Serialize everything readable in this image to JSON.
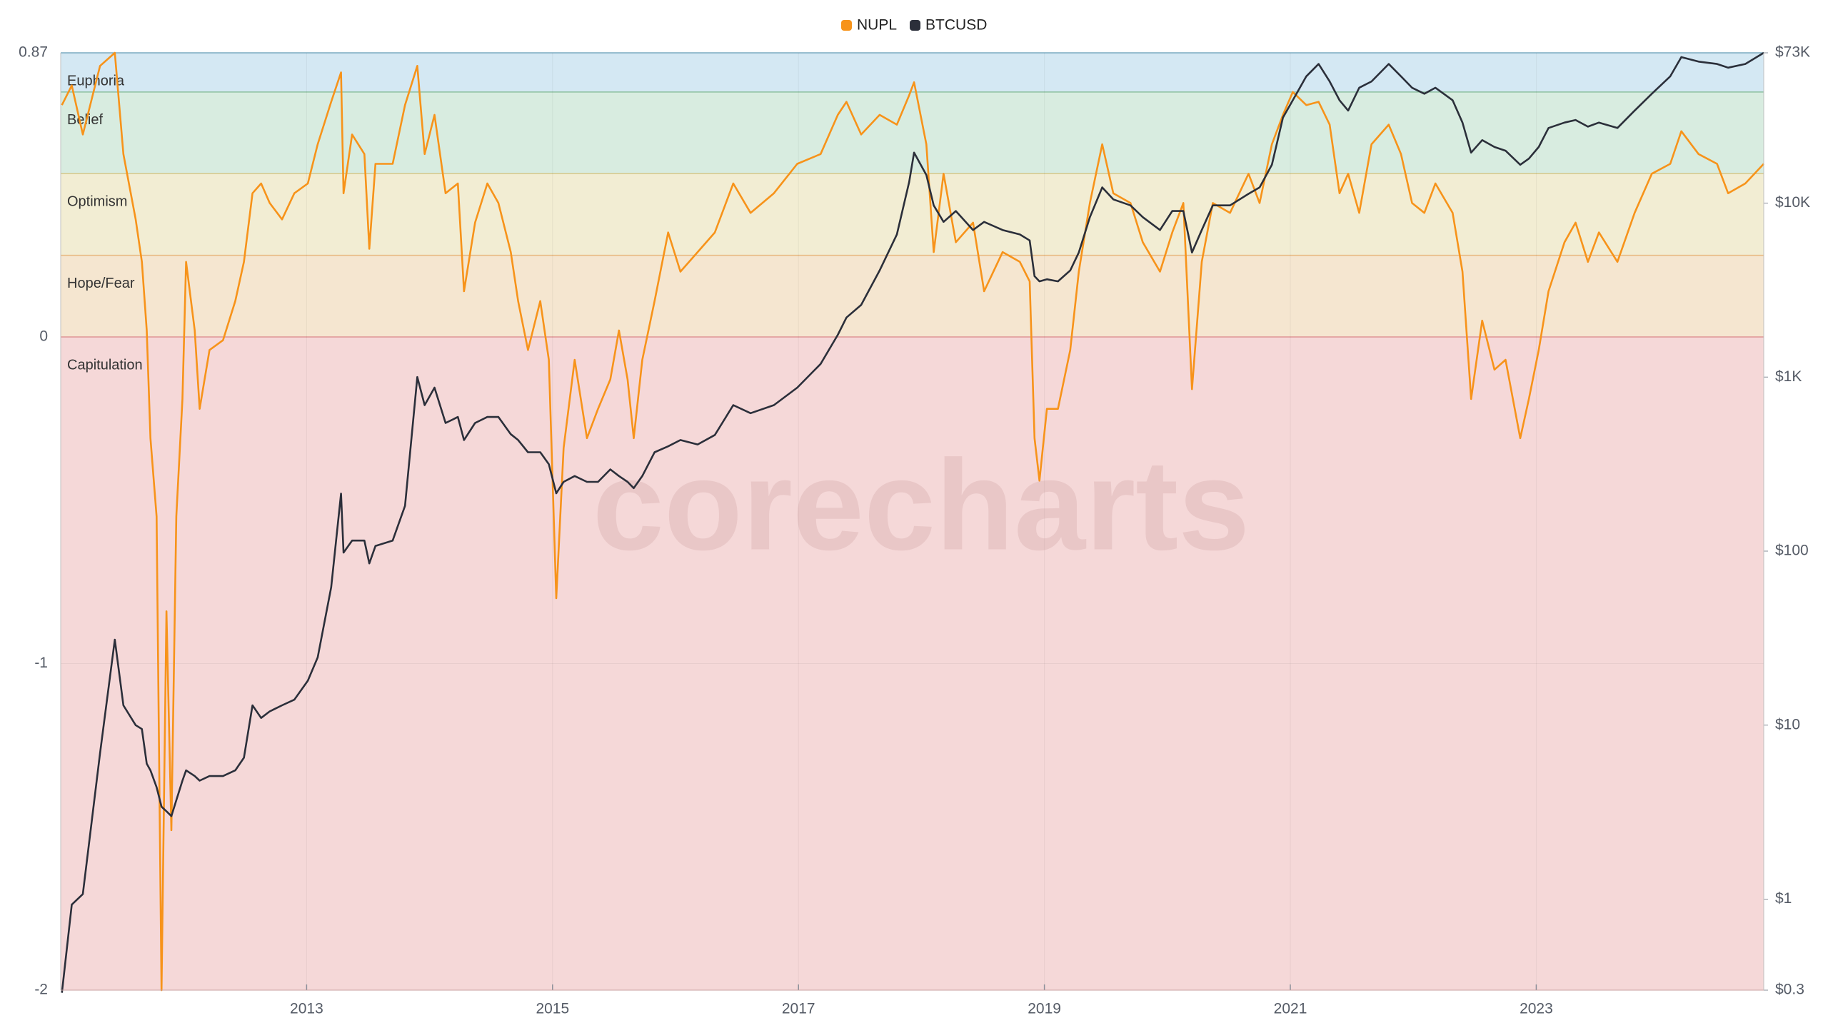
{
  "chart_data": {
    "type": "line",
    "watermark": "corecharts",
    "x": [
      2011.01,
      2011.09,
      2011.18,
      2011.32,
      2011.44,
      2011.51,
      2011.61,
      2011.66,
      2011.7,
      2011.73,
      2011.78,
      2011.82,
      2011.86,
      2011.9,
      2011.94,
      2011.99,
      2012.02,
      2012.09,
      2012.13,
      2012.21,
      2012.32,
      2012.42,
      2012.49,
      2012.56,
      2012.63,
      2012.7,
      2012.8,
      2012.9,
      2013.01,
      2013.09,
      2013.2,
      2013.28,
      2013.3,
      2013.37,
      2013.47,
      2013.51,
      2013.56,
      2013.7,
      2013.8,
      2013.9,
      2013.96,
      2014.04,
      2014.13,
      2014.23,
      2014.28,
      2014.37,
      2014.47,
      2014.56,
      2014.66,
      2014.72,
      2014.8,
      2014.9,
      2014.97,
      2015.03,
      2015.09,
      2015.18,
      2015.28,
      2015.37,
      2015.47,
      2015.54,
      2015.61,
      2015.66,
      2015.73,
      2015.83,
      2015.94,
      2016.04,
      2016.18,
      2016.32,
      2016.47,
      2016.61,
      2016.8,
      2016.99,
      2017.18,
      2017.32,
      2017.39,
      2017.51,
      2017.66,
      2017.8,
      2017.9,
      2017.94,
      2018.04,
      2018.1,
      2018.18,
      2018.28,
      2018.42,
      2018.51,
      2018.66,
      2018.8,
      2018.88,
      2018.92,
      2018.96,
      2019.02,
      2019.11,
      2019.21,
      2019.28,
      2019.37,
      2019.47,
      2019.56,
      2019.7,
      2019.8,
      2019.94,
      2020.04,
      2020.13,
      2020.2,
      2020.28,
      2020.37,
      2020.51,
      2020.66,
      2020.75,
      2020.85,
      2020.94,
      2021.02,
      2021.13,
      2021.23,
      2021.32,
      2021.4,
      2021.47,
      2021.56,
      2021.66,
      2021.8,
      2021.9,
      2021.99,
      2022.09,
      2022.18,
      2022.32,
      2022.4,
      2022.47,
      2022.56,
      2022.66,
      2022.75,
      2022.87,
      2022.94,
      2023.02,
      2023.1,
      2023.23,
      2023.32,
      2023.42,
      2023.51,
      2023.66,
      2023.8,
      2023.94,
      2024.09,
      2024.18,
      2024.32,
      2024.47,
      2024.56,
      2024.7,
      2024.85
    ],
    "series": [
      {
        "name": "NUPL",
        "color": "#f7931a",
        "values": [
          0.71,
          0.77,
          0.62,
          0.83,
          0.87,
          0.56,
          0.36,
          0.23,
          0.02,
          -0.31,
          -0.55,
          -2.0,
          -0.84,
          -1.51,
          -0.55,
          -0.19,
          0.23,
          0.02,
          -0.22,
          -0.04,
          -0.01,
          0.11,
          0.23,
          0.44,
          0.47,
          0.41,
          0.36,
          0.44,
          0.47,
          0.59,
          0.72,
          0.81,
          0.44,
          0.62,
          0.56,
          0.27,
          0.53,
          0.53,
          0.71,
          0.83,
          0.56,
          0.68,
          0.44,
          0.47,
          0.14,
          0.35,
          0.47,
          0.41,
          0.26,
          0.11,
          -0.04,
          0.11,
          -0.07,
          -0.8,
          -0.34,
          -0.07,
          -0.31,
          -0.22,
          -0.13,
          0.02,
          -0.13,
          -0.31,
          -0.07,
          0.11,
          0.32,
          0.2,
          0.26,
          0.32,
          0.47,
          0.38,
          0.44,
          0.53,
          0.56,
          0.68,
          0.72,
          0.62,
          0.68,
          0.65,
          0.74,
          0.78,
          0.59,
          0.26,
          0.5,
          0.29,
          0.35,
          0.14,
          0.26,
          0.23,
          0.17,
          -0.31,
          -0.44,
          -0.22,
          -0.22,
          -0.04,
          0.2,
          0.41,
          0.59,
          0.44,
          0.41,
          0.29,
          0.2,
          0.32,
          0.41,
          -0.16,
          0.23,
          0.41,
          0.38,
          0.5,
          0.41,
          0.59,
          0.68,
          0.75,
          0.71,
          0.72,
          0.65,
          0.44,
          0.5,
          0.38,
          0.59,
          0.65,
          0.56,
          0.41,
          0.38,
          0.47,
          0.38,
          0.2,
          -0.19,
          0.05,
          -0.1,
          -0.07,
          -0.31,
          -0.19,
          -0.04,
          0.14,
          0.29,
          0.35,
          0.23,
          0.32,
          0.23,
          0.38,
          0.5,
          0.53,
          0.63,
          0.56,
          0.53,
          0.44,
          0.47,
          0.53
        ]
      },
      {
        "name": "BTCUSD",
        "color": "#2b2f3a",
        "axis": "y2",
        "values": [
          0.29,
          0.93,
          1.07,
          6.9,
          31,
          13,
          10,
          9.5,
          6,
          5.5,
          4.4,
          3.4,
          3.2,
          3,
          3.7,
          4.8,
          5.5,
          5.1,
          4.8,
          5.1,
          5.1,
          5.5,
          6.5,
          13,
          11,
          12,
          13,
          14,
          18,
          24.5,
          62,
          214,
          98,
          115,
          115,
          85,
          107,
          115,
          182,
          1000,
          690,
          870,
          545,
          590,
          435,
          545,
          590,
          590,
          470,
          435,
          370,
          370,
          316,
          215,
          250,
          270,
          250,
          250,
          295,
          270,
          250,
          230,
          270,
          370,
          400,
          435,
          410,
          465,
          690,
          620,
          690,
          870,
          1190,
          1750,
          2200,
          2600,
          4100,
          6600,
          13200,
          19500,
          14500,
          9700,
          7800,
          9000,
          7000,
          7800,
          7000,
          6600,
          6100,
          3800,
          3550,
          3650,
          3550,
          4100,
          5200,
          8300,
          12300,
          10500,
          9700,
          8300,
          7000,
          9000,
          9000,
          5200,
          7000,
          9700,
          9700,
          11300,
          12300,
          16600,
          31000,
          39000,
          53500,
          63000,
          50000,
          39000,
          34000,
          46000,
          50000,
          63000,
          53500,
          46000,
          42500,
          46000,
          39000,
          29000,
          19500,
          23000,
          21000,
          20000,
          16600,
          18000,
          21000,
          27000,
          29000,
          30000,
          27500,
          29000,
          27000,
          34000,
          42500,
          53500,
          69000,
          65000,
          63000,
          60000,
          63000,
          73000
        ]
      }
    ],
    "bands": [
      {
        "label": "Euphoria",
        "from": 0.75,
        "to": 0.87,
        "color": "#d4e8f3",
        "edge": "#7fb0c8"
      },
      {
        "label": "Belief",
        "from": 0.5,
        "to": 0.75,
        "color": "#d8ece0",
        "edge": "#8cc0a0"
      },
      {
        "label": "Optimism",
        "from": 0.25,
        "to": 0.5,
        "color": "#f2edd3",
        "edge": "#d8c98a"
      },
      {
        "label": "Hope/Fear",
        "from": 0,
        "to": 0.25,
        "color": "#f5e6d0",
        "edge": "#e8b880"
      },
      {
        "label": "Capitulation",
        "from": -2,
        "to": 0,
        "color": "#f5d8d8",
        "edge": "#e79a9a"
      }
    ],
    "xlim": [
      2011,
      2024.85
    ],
    "xticks": [
      2013,
      2015,
      2017,
      2019,
      2021,
      2023
    ],
    "ylim": [
      -2,
      0.87
    ],
    "yticks": [
      -2,
      -1,
      0,
      0.87
    ],
    "y2lim": [
      0.3,
      73000
    ],
    "y2ticks": [
      {
        "value": 0.3,
        "label": "$0.3"
      },
      {
        "value": 1,
        "label": "$1"
      },
      {
        "value": 10,
        "label": "$10"
      },
      {
        "value": 100,
        "label": "$100"
      },
      {
        "value": 1000,
        "label": "$1K"
      },
      {
        "value": 10000,
        "label": "$10K"
      },
      {
        "value": 73000,
        "label": "$73K"
      }
    ],
    "y2log": true,
    "grid": true
  }
}
